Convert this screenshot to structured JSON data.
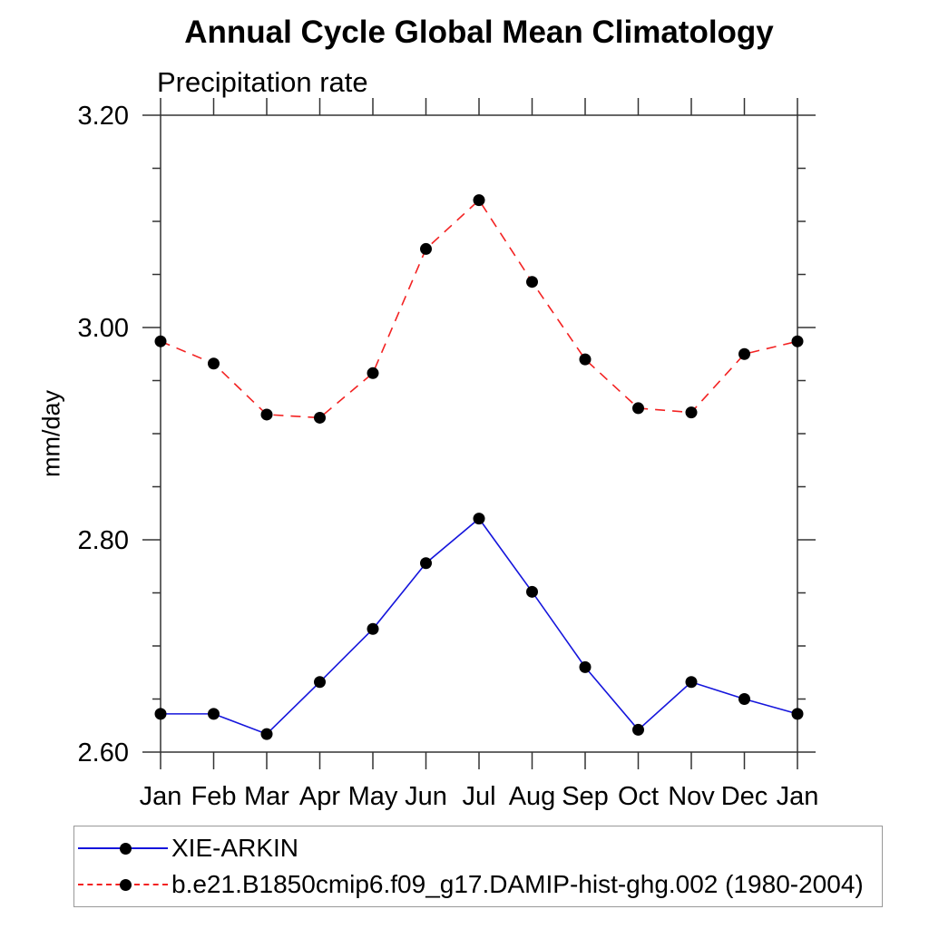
{
  "title": "Annual Cycle Global Mean Climatology",
  "subtitle": "Precipitation rate",
  "chart_data": {
    "type": "line",
    "categories": [
      "Jan",
      "Feb",
      "Mar",
      "Apr",
      "May",
      "Jun",
      "Jul",
      "Aug",
      "Sep",
      "Oct",
      "Nov",
      "Dec",
      "Jan"
    ],
    "xlabel": "",
    "ylabel": "mm/day",
    "ylim": [
      2.6,
      3.2
    ],
    "ytick_values": [
      2.6,
      2.8,
      3.0,
      3.2
    ],
    "ytick_labels": [
      "2.60",
      "2.80",
      "3.00",
      "3.20"
    ],
    "ytick_minor_step": 0.05,
    "grid": "off",
    "legend_position": "bottom",
    "axis_color": "#333333",
    "marker": {
      "shape": "circle",
      "color": "#000000"
    },
    "series": [
      {
        "name": "XIE-ARKIN",
        "color": "#1515dc",
        "line_style": "solid",
        "values": [
          2.636,
          2.636,
          2.617,
          2.666,
          2.716,
          2.778,
          2.82,
          2.751,
          2.68,
          2.621,
          2.666,
          2.65,
          2.636
        ]
      },
      {
        "name": "b.e21.B1850cmip6.f09_g17.DAMIP-hist-ghg.002 (1980-2004)",
        "color": "#f32222",
        "line_style": "dashed",
        "values": [
          2.987,
          2.966,
          2.918,
          2.915,
          2.957,
          3.074,
          3.12,
          3.043,
          2.97,
          2.924,
          2.92,
          2.975,
          2.987
        ]
      }
    ]
  }
}
